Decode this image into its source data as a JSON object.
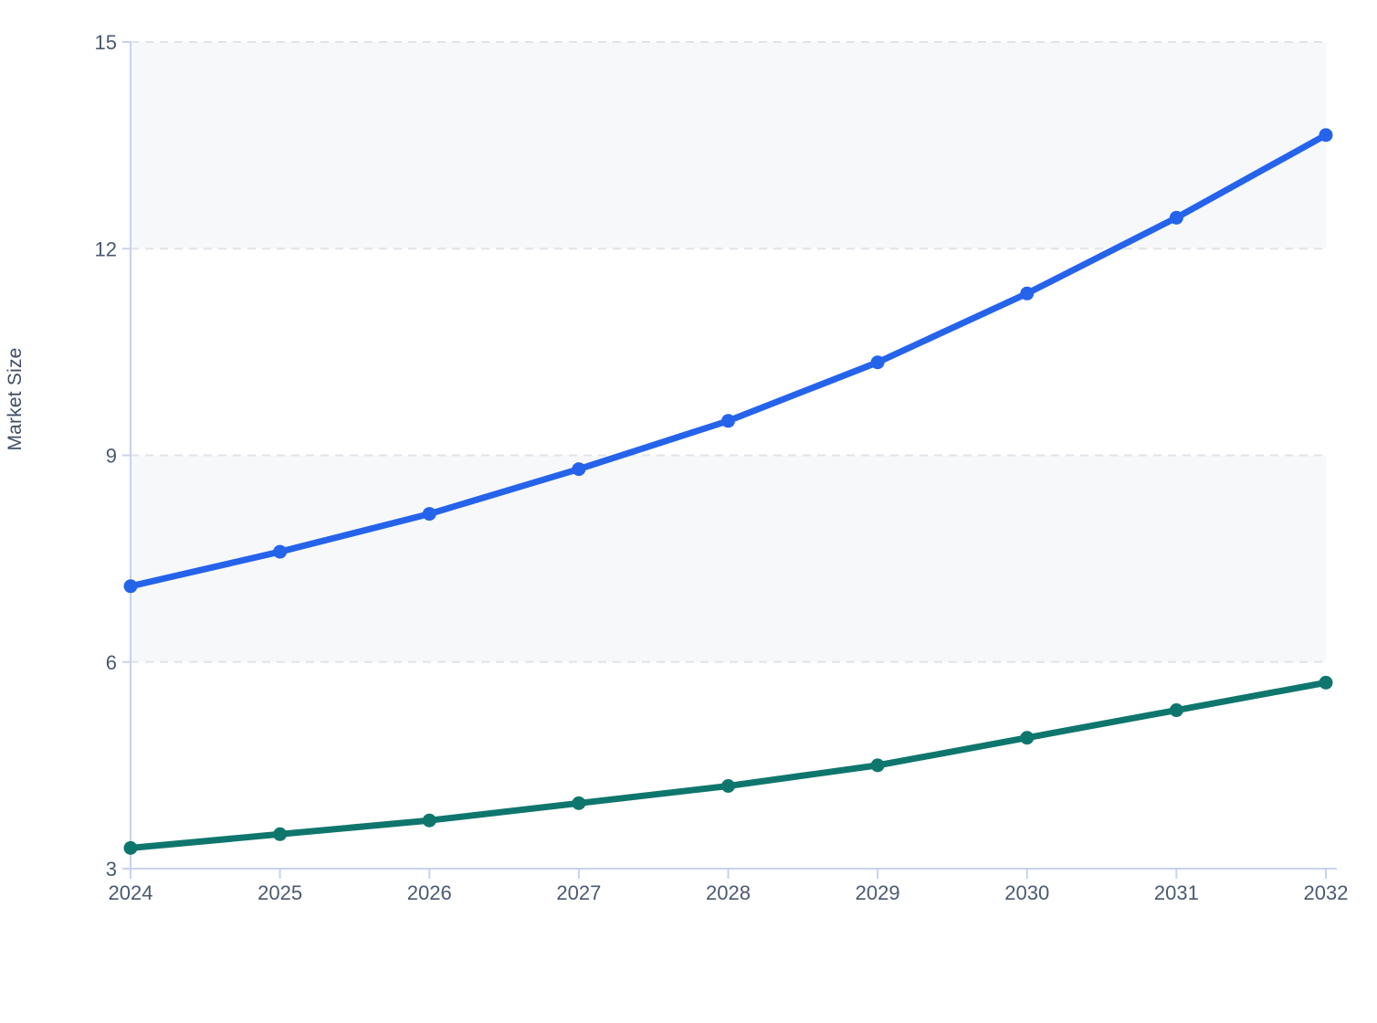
{
  "page": {
    "background": "#ffffff"
  },
  "chart_data": {
    "type": "line",
    "title": "",
    "xlabel": "",
    "ylabel": "Market Size",
    "x": [
      2024,
      2025,
      2026,
      2027,
      2028,
      2029,
      2030,
      2031,
      2032
    ],
    "yticks": [
      3,
      6,
      9,
      12,
      15
    ],
    "ylim": [
      3,
      15
    ],
    "grid": "horizontal-dashed",
    "legend": "none",
    "bands": {
      "ranges": [
        [
          6,
          9
        ],
        [
          12,
          15
        ]
      ],
      "fill": "#f6f8fa"
    },
    "series": [
      {
        "id": "series-1",
        "color": "#2563eb",
        "values": [
          7.1,
          7.6,
          8.15,
          8.8,
          9.5,
          10.35,
          11.35,
          12.45,
          13.65
        ]
      },
      {
        "id": "series-2",
        "color": "#0f766e",
        "values": [
          3.3,
          3.5,
          3.7,
          3.95,
          4.2,
          4.5,
          4.9,
          5.3,
          5.7
        ]
      }
    ],
    "colors": {
      "axis_line": "#c8d2ec",
      "gridline": "#e0e3e8",
      "tick_label": "#4a5a70",
      "axis_title": "#3f4f66"
    }
  }
}
